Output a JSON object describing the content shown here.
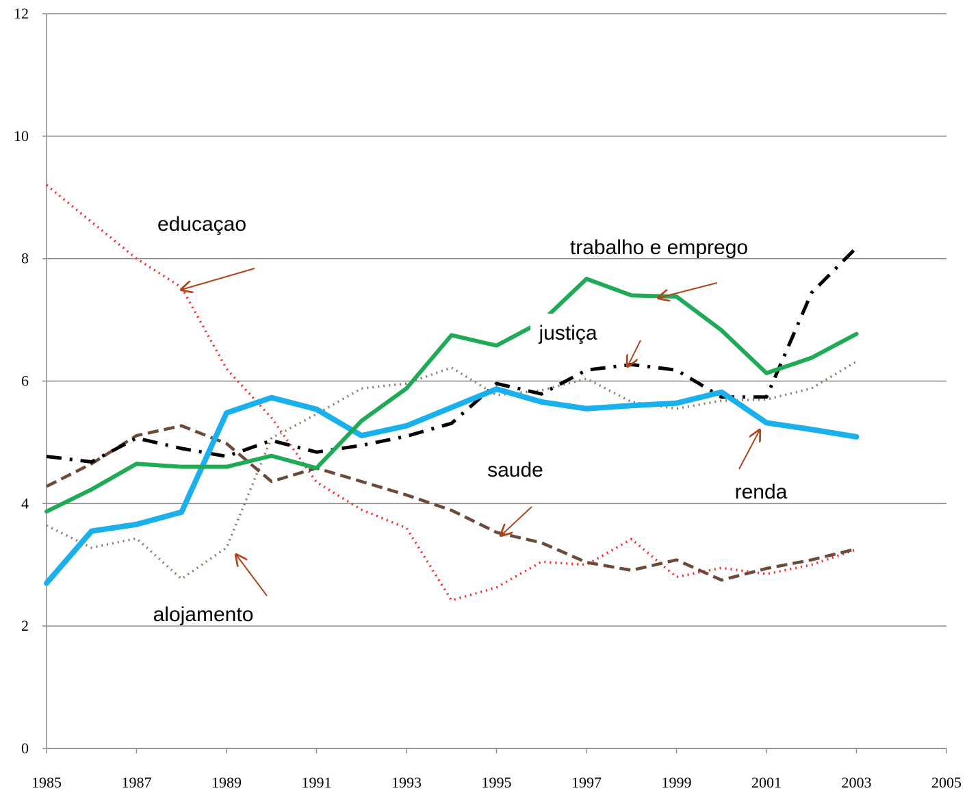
{
  "chart_data": {
    "type": "line",
    "x": [
      1985,
      1986,
      1987,
      1988,
      1989,
      1990,
      1991,
      1992,
      1993,
      1994,
      1995,
      1996,
      1997,
      1998,
      1999,
      2000,
      2001,
      2002,
      2003
    ],
    "series": [
      {
        "name": "educaçao",
        "color": "#ff2020",
        "dash": "2,6",
        "width": 3.5,
        "values": [
          9.2,
          8.6,
          8.0,
          7.53,
          6.2,
          5.4,
          4.35,
          3.9,
          3.6,
          2.42,
          2.63,
          3.05,
          3.0,
          3.42,
          2.8,
          2.95,
          2.85,
          3.0,
          3.25
        ]
      },
      {
        "name": "alojamento",
        "color": "#8b7b62",
        "dash": "2,6",
        "width": 3.5,
        "values": [
          3.64,
          3.28,
          3.43,
          2.77,
          3.28,
          5.07,
          5.46,
          5.88,
          5.96,
          6.22,
          5.77,
          5.85,
          6.04,
          5.66,
          5.55,
          5.68,
          5.7,
          5.88,
          6.32
        ]
      },
      {
        "name": "saude",
        "color": "#6b4a3a",
        "dash": "16,8",
        "width": 4.5,
        "values": [
          4.28,
          4.65,
          5.11,
          5.27,
          4.98,
          4.36,
          4.58,
          4.36,
          4.14,
          3.89,
          3.53,
          3.36,
          3.04,
          2.91,
          3.08,
          2.75,
          2.94,
          3.08,
          3.26
        ]
      },
      {
        "name": "justiça",
        "color": "#000000",
        "dash": "22,12,4,12",
        "width": 5,
        "values": [
          4.77,
          4.68,
          5.07,
          4.9,
          4.77,
          5.03,
          4.84,
          4.95,
          5.1,
          5.31,
          5.96,
          5.79,
          6.18,
          6.27,
          6.18,
          5.74,
          5.74,
          7.44,
          8.18
        ]
      },
      {
        "name": "renda",
        "color": "#1ab0ec",
        "dash": "none",
        "width": 8,
        "values": [
          2.7,
          3.55,
          3.66,
          3.86,
          5.48,
          5.73,
          5.54,
          5.11,
          5.27,
          5.57,
          5.87,
          5.66,
          5.55,
          5.6,
          5.64,
          5.82,
          5.32,
          5.21,
          5.09
        ]
      },
      {
        "name": "trabalho e emprego",
        "color": "#1faa55",
        "dash": "none",
        "width": 6,
        "values": [
          3.87,
          4.23,
          4.65,
          4.6,
          4.6,
          4.78,
          4.58,
          5.35,
          5.88,
          6.75,
          6.58,
          6.97,
          7.67,
          7.4,
          7.38,
          6.83,
          6.13,
          6.38,
          6.77
        ]
      }
    ],
    "xlim": [
      1985,
      2005
    ],
    "xticks": [
      1985,
      1987,
      1989,
      1991,
      1993,
      1995,
      1997,
      1999,
      2001,
      2003,
      2005
    ],
    "ylim": [
      0,
      12
    ],
    "yticks": [
      0,
      2,
      4,
      6,
      8,
      10,
      12
    ],
    "grid": true
  }
}
